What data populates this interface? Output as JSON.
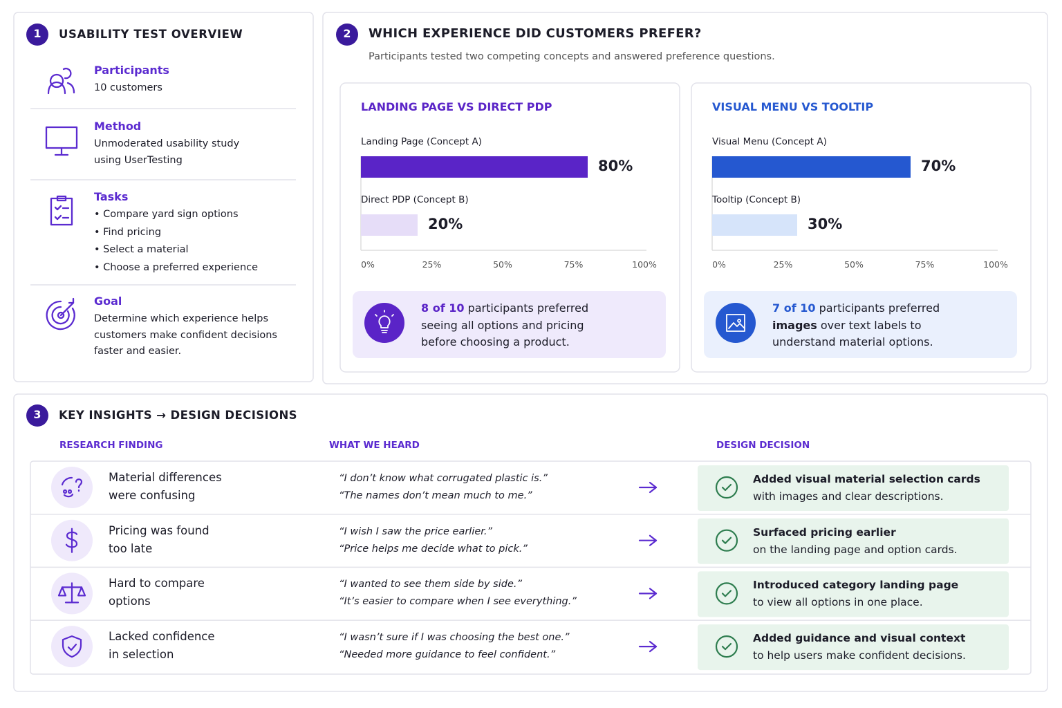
{
  "overview": {
    "number": "1",
    "title": "USABILITY TEST OVERVIEW",
    "items": [
      {
        "label": "Participants",
        "lines": [
          "10 customers"
        ]
      },
      {
        "label": "Method",
        "lines": [
          "Unmoderated usability study",
          "using UserTesting"
        ]
      },
      {
        "label": "Tasks",
        "lines": [
          "• Compare yard sign options",
          "• Find pricing",
          "• Select a material",
          "• Choose a preferred experience"
        ]
      },
      {
        "label": "Goal",
        "lines": [
          "Determine which experience helps",
          "customers make confident decisions",
          "faster and easier."
        ]
      }
    ]
  },
  "preference": {
    "number": "2",
    "title": "WHICH EXPERIENCE DID CUSTOMERS PREFER?",
    "subtitle": "Participants tested two competing concepts and answered preference questions."
  },
  "chart_data": [
    {
      "type": "bar",
      "orientation": "horizontal",
      "title": "LANDING PAGE VS DIRECT PDP",
      "categories": [
        "Landing Page (Concept A)",
        "Direct PDP (Concept B)"
      ],
      "values": [
        80,
        20
      ],
      "value_labels": [
        "80%",
        "20%"
      ],
      "colors": [
        "#5a24c7",
        "#e6ddf8"
      ],
      "title_color": "#5a24c7",
      "xlim": [
        0,
        100
      ],
      "xticks": [
        {
          "value": 0,
          "label": "0%"
        },
        {
          "value": 25,
          "label": "25%"
        },
        {
          "value": 50,
          "label": "50%"
        },
        {
          "value": 75,
          "label": "75%"
        },
        {
          "value": 100,
          "label": "100%"
        }
      ],
      "callout": {
        "parts": [
          "8 of 10",
          "participants preferred seeing all options and pricing before choosing a product."
        ],
        "background": "#efeafc"
      }
    },
    {
      "type": "bar",
      "orientation": "horizontal",
      "title": "VISUAL MENU VS TOOLTIP",
      "categories": [
        "Visual Menu (Concept A)",
        "Tooltip (Concept B)"
      ],
      "values": [
        70,
        30
      ],
      "value_labels": [
        "70%",
        "30%"
      ],
      "colors": [
        "#2558d0",
        "#d6e4fa"
      ],
      "title_color": "#2558d0",
      "xlim": [
        0,
        100
      ],
      "xticks": [
        {
          "value": 0,
          "label": "0%"
        },
        {
          "value": 25,
          "label": "25%"
        },
        {
          "value": 50,
          "label": "50%"
        },
        {
          "value": 75,
          "label": "75%"
        },
        {
          "value": 100,
          "label": "100%"
        }
      ],
      "callout": {
        "parts": [
          "7 of 10",
          "participants preferred",
          "images",
          "over text labels to understand material options."
        ],
        "background": "#eaf0fd"
      }
    }
  ],
  "insights": {
    "number": "3",
    "title": "KEY INSIGHTS → DESIGN DECISIONS",
    "columns": [
      "RESEARCH FINDING",
      "WHAT WE HEARD",
      "DESIGN DECISION"
    ],
    "rows": [
      {
        "finding": [
          "Material differences",
          "were confusing"
        ],
        "quotes": [
          "“I don’t know what corrugated plastic is.”",
          "“The names don’t mean much to me.”"
        ],
        "decision_title": "Added visual material selection cards",
        "decision_text": "with images and clear descriptions."
      },
      {
        "finding": [
          "Pricing was found",
          "too late"
        ],
        "quotes": [
          "“I wish I saw the price earlier.”",
          "“Price helps me decide what to pick.”"
        ],
        "decision_title": "Surfaced pricing earlier",
        "decision_text": "on the landing page and option cards."
      },
      {
        "finding": [
          "Hard to compare",
          "options"
        ],
        "quotes": [
          "“I wanted to see them side by side.”",
          "“It’s easier to compare when I see everything.”"
        ],
        "decision_title": "Introduced category landing page",
        "decision_text": "to view all options in one place."
      },
      {
        "finding": [
          "Lacked confidence",
          "in selection"
        ],
        "quotes": [
          "“I wasn’t sure if I was choosing the best one.”",
          "“Needed more guidance to feel confident.”"
        ],
        "decision_title": "Added guidance and visual context",
        "decision_text": "to help users make confident decisions."
      }
    ]
  }
}
